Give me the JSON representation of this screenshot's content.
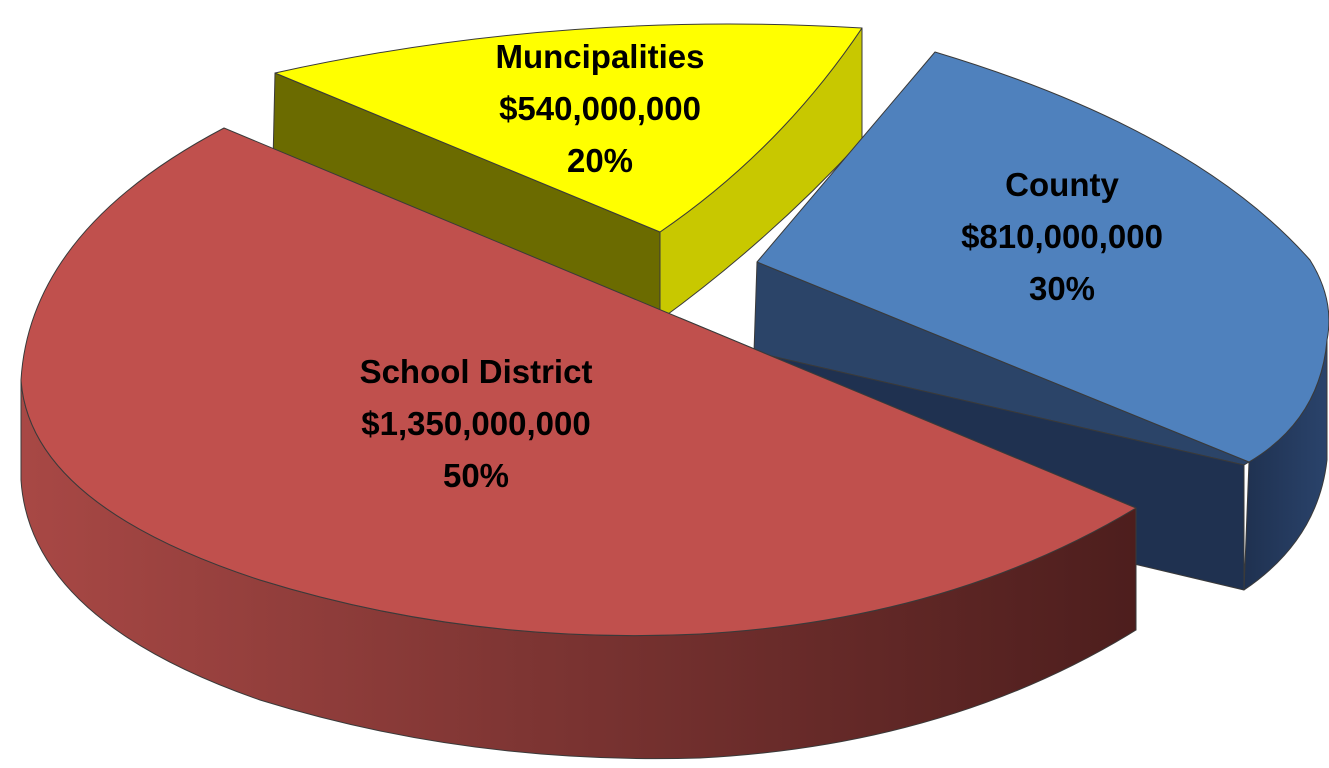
{
  "chart_data": {
    "type": "pie",
    "style": "3d-exploded",
    "slices": [
      {
        "name": "School District",
        "amount": "$1,350,000,000",
        "percent_label": "50%",
        "value": 1350000000,
        "percent": 50,
        "color": "#c0504d"
      },
      {
        "name": "Muncipalities",
        "amount": "$540,000,000",
        "percent_label": "20%",
        "value": 540000000,
        "percent": 20,
        "color": "#ffff00"
      },
      {
        "name": "County",
        "amount": "$810,000,000",
        "percent_label": "30%",
        "value": 810000000,
        "percent": 30,
        "color": "#4f81bd"
      }
    ]
  }
}
